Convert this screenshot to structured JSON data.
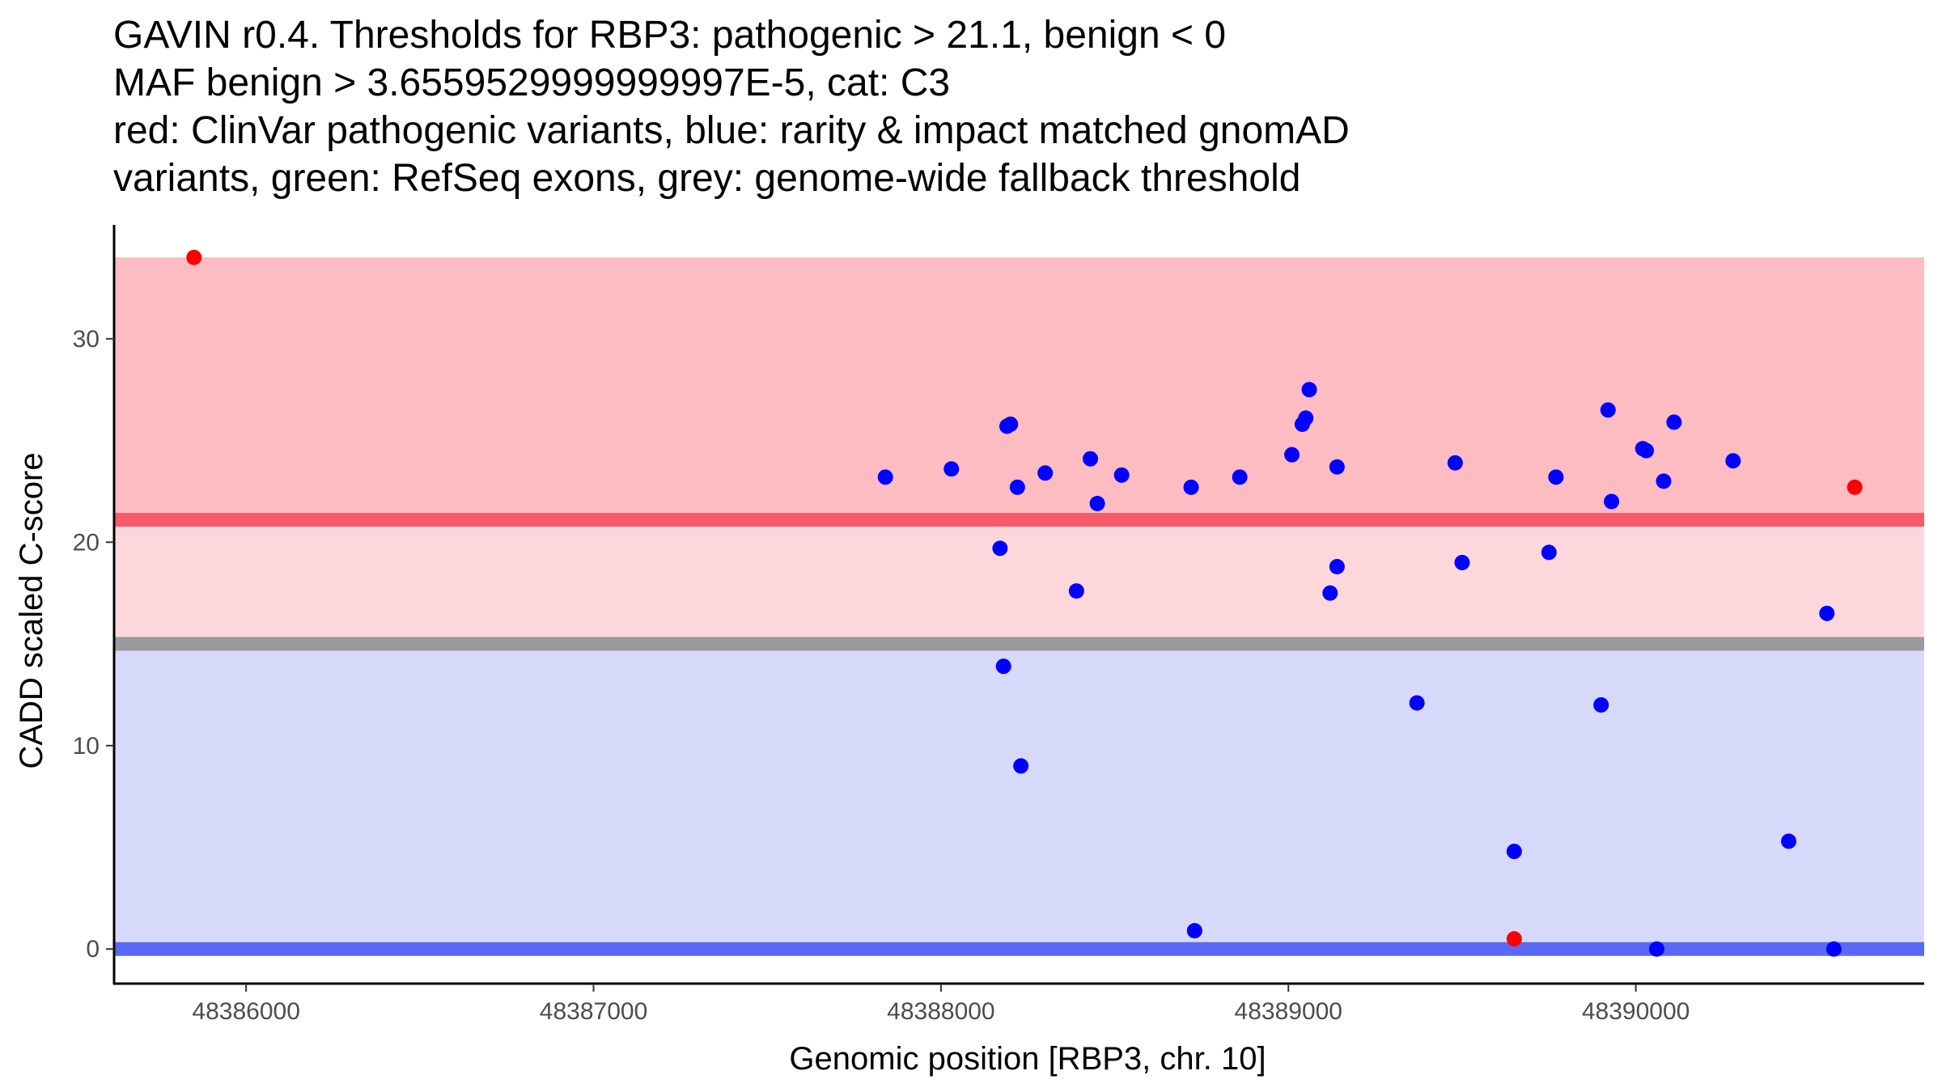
{
  "title_lines": [
    "GAVIN r0.4. Thresholds for RBP3: pathogenic > 21.1, benign < 0",
    "MAF benign > 3.6559529999999997E-5, cat: C3",
    "red: ClinVar pathogenic variants, blue: rarity & impact matched gnomAD",
    "variants, green: RefSeq exons, grey: genome-wide fallback threshold"
  ],
  "chart_data": {
    "type": "scatter",
    "xlabel": "Genomic position [RBP3, chr. 10]",
    "ylabel": "CADD scaled C-score",
    "xlim": [
      48385620,
      48390830
    ],
    "ylim": [
      -1.7,
      35.6
    ],
    "x_ticks": [
      48386000,
      48387000,
      48388000,
      48389000,
      48390000
    ],
    "y_ticks": [
      0,
      10,
      20,
      30
    ],
    "colors": {
      "pathogenic_band": "#fdbcc1",
      "intermediate_band": "#fed7dc",
      "benign_band": "#d7d9fb",
      "pathogenic_line": "#f75a68",
      "fallback_line": "#9b9b9f",
      "benign_line": "#5a69f4",
      "pathogenic_points": "#ff0000",
      "gnomad_points": "#0000ff",
      "axis": "#000000"
    },
    "bands": [
      {
        "name": "pathogenic",
        "from": 21.1,
        "to": 34.0
      },
      {
        "name": "intermediate",
        "from": 15.0,
        "to": 21.1
      },
      {
        "name": "benign",
        "from": 0,
        "to": 15.0
      }
    ],
    "thresholds": [
      {
        "name": "pathogenic",
        "value": 21.1
      },
      {
        "name": "genome-wide-fallback",
        "value": 15.0
      },
      {
        "name": "benign",
        "value": 0
      }
    ],
    "series": [
      {
        "name": "ClinVar pathogenic variants",
        "color": "#ff0000",
        "x": [
          48385850,
          48389650,
          48390630
        ],
        "y": [
          34.0,
          0.5,
          22.7
        ]
      },
      {
        "name": "rarity & impact matched gnomAD variants",
        "color": "#0000ff",
        "x": [
          48387840,
          48388030,
          48388170,
          48388180,
          48388190,
          48388200,
          48388220,
          48388230,
          48388300,
          48388390,
          48388430,
          48388450,
          48388520,
          48388720,
          48388730,
          48388860,
          48389010,
          48389040,
          48389050,
          48389060,
          48389120,
          48389140,
          48389140,
          48389370,
          48389480,
          48389500,
          48389650,
          48389750,
          48389770,
          48389900,
          48389920,
          48389930,
          48390020,
          48390030,
          48390060,
          48390080,
          48390110,
          48390280,
          48390440,
          48390550,
          48390570
        ],
        "y": [
          23.2,
          23.6,
          19.7,
          13.9,
          25.7,
          25.8,
          22.7,
          9.0,
          23.4,
          17.6,
          24.1,
          21.9,
          23.3,
          22.7,
          0.9,
          23.2,
          24.3,
          25.8,
          26.1,
          27.5,
          17.5,
          18.8,
          23.7,
          12.1,
          23.9,
          19.0,
          4.8,
          19.5,
          23.2,
          12.0,
          26.5,
          22.0,
          24.6,
          24.5,
          0.0,
          23.0,
          25.9,
          24.0,
          5.3,
          16.5,
          0.0
        ]
      }
    ]
  }
}
